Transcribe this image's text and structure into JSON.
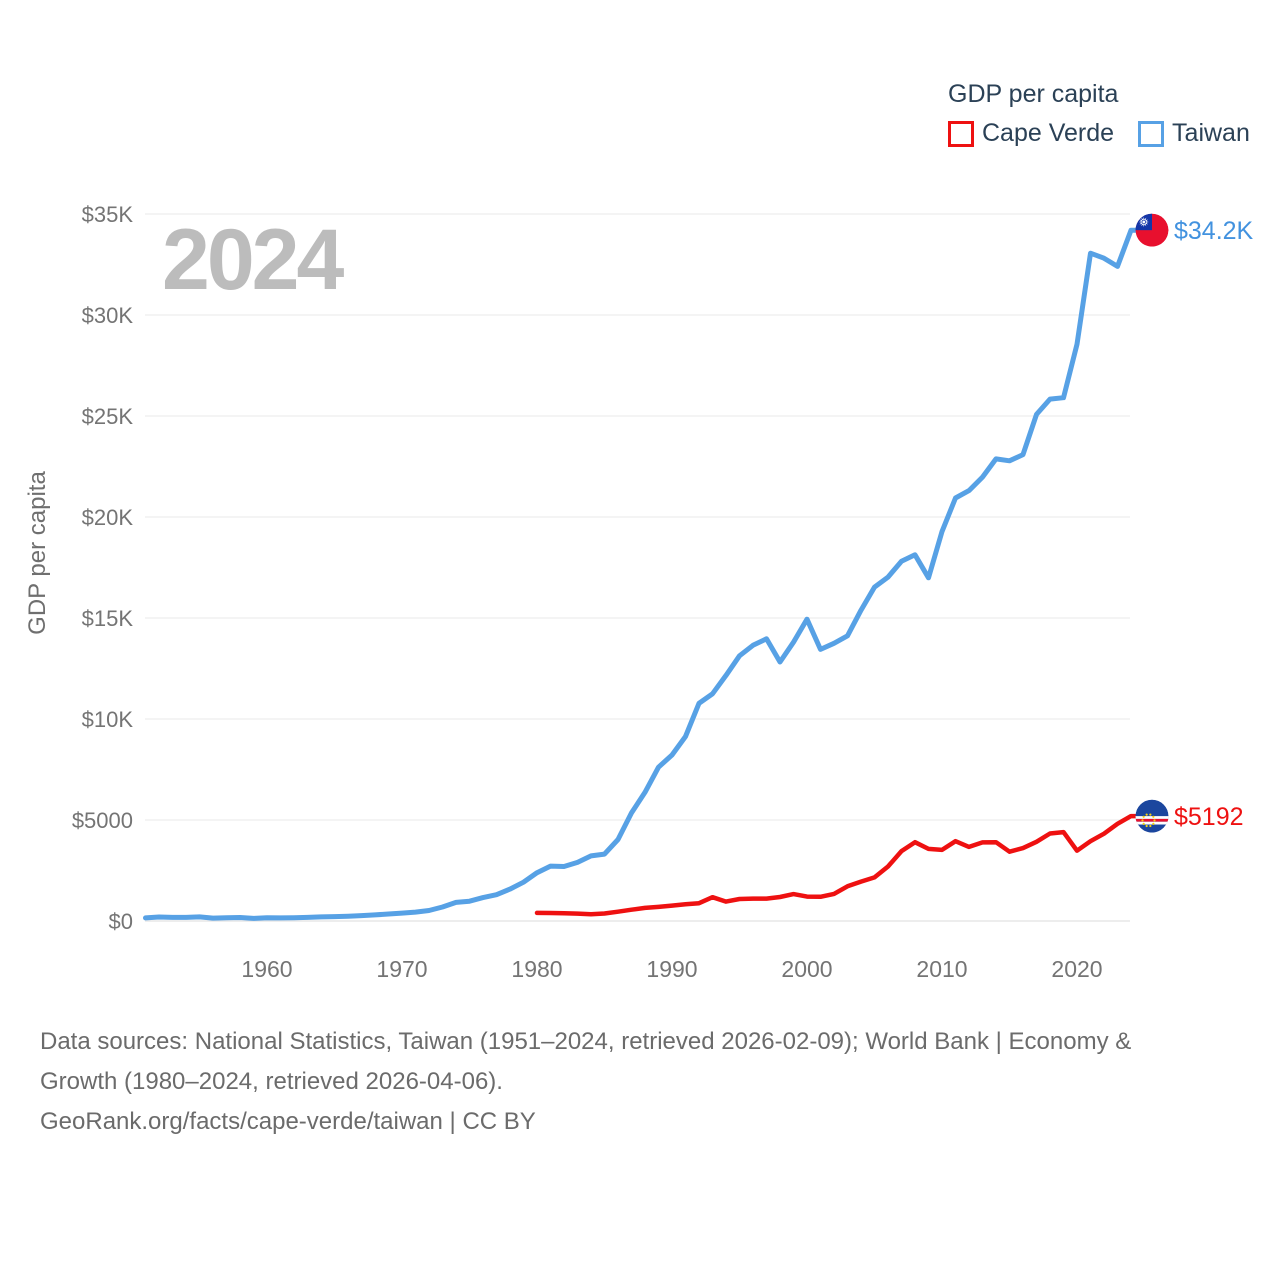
{
  "legend": {
    "title": "GDP per capita"
  },
  "watermark": "2024",
  "y_axis": {
    "title": "GDP per capita",
    "ticks": [
      {
        "value": 0,
        "label": "$0"
      },
      {
        "value": 5000,
        "label": "$5000"
      },
      {
        "value": 10000,
        "label": "$10K"
      },
      {
        "value": 15000,
        "label": "$15K"
      },
      {
        "value": 20000,
        "label": "$20K"
      },
      {
        "value": 25000,
        "label": "$25K"
      },
      {
        "value": 30000,
        "label": "$30K"
      },
      {
        "value": 35000,
        "label": "$35K"
      }
    ]
  },
  "x_axis": {
    "ticks": [
      1960,
      1970,
      1980,
      1990,
      2000,
      2010,
      2020
    ]
  },
  "footer": {
    "line1": "Data sources: National Statistics, Taiwan (1951–2024, retrieved 2026-02-09); World Bank | Economy &",
    "line2": "Growth (1980–2024, retrieved 2026-04-06).",
    "line3": "GeoRank.org/facts/cape-verde/taiwan | CC BY"
  },
  "chart_data": {
    "type": "line",
    "title": "GDP per capita",
    "ylabel": "GDP per capita",
    "xlim": [
      1951,
      2024
    ],
    "ylim": [
      0,
      35000
    ],
    "grid": "horizontal",
    "legend_position": "top-right",
    "watermark_year": "2024",
    "colors": {
      "grid": "#ededed",
      "tick_text": "#747474",
      "watermark": "#bcbcbc",
      "legend_text": "#2b4156",
      "footer_text": "#6b6b6b"
    },
    "series": [
      {
        "id": "cape-verde",
        "name": "Cape Verde",
        "color": "#ee1111",
        "label_color": "#ee1111",
        "end_label": "$5192",
        "end_value": 5192,
        "years": {
          "start": 1980,
          "end": 2024
        },
        "values": [
          400,
          395,
          385,
          365,
          330,
          370,
          460,
          560,
          650,
          700,
          760,
          830,
          880,
          1180,
          960,
          1090,
          1110,
          1110,
          1190,
          1330,
          1210,
          1200,
          1340,
          1720,
          1950,
          2160,
          2700,
          3460,
          3900,
          3570,
          3520,
          3950,
          3670,
          3890,
          3900,
          3430,
          3610,
          3920,
          4330,
          4400,
          3480,
          3950,
          4320,
          4810,
          5192
        ]
      },
      {
        "id": "taiwan",
        "name": "Taiwan",
        "color": "#57a1e5",
        "label_color": "#4292df",
        "end_label": "$34.2K",
        "end_value": 34200,
        "years": {
          "start": 1951,
          "end": 2024
        },
        "values": [
          154,
          196,
          176,
          178,
          203,
          143,
          160,
          173,
          131,
          163,
          152,
          162,
          178,
          202,
          217,
          236,
          267,
          304,
          345,
          393,
          443,
          522,
          695,
          920,
          978,
          1158,
          1301,
          1577,
          1920,
          2389,
          2720,
          2699,
          2903,
          3224,
          3314,
          4036,
          5350,
          6370,
          7613,
          8216,
          9136,
          10778,
          11250,
          12160,
          13129,
          13650,
          13970,
          12820,
          13804,
          14941,
          13448,
          13750,
          14120,
          15388,
          16532,
          17026,
          17814,
          18131,
          16988,
          19278,
          20939,
          21308,
          21973,
          22874,
          22780,
          23091,
          25080,
          25838,
          25908,
          28549,
          33059,
          32811,
          32404,
          34200
        ]
      }
    ]
  }
}
